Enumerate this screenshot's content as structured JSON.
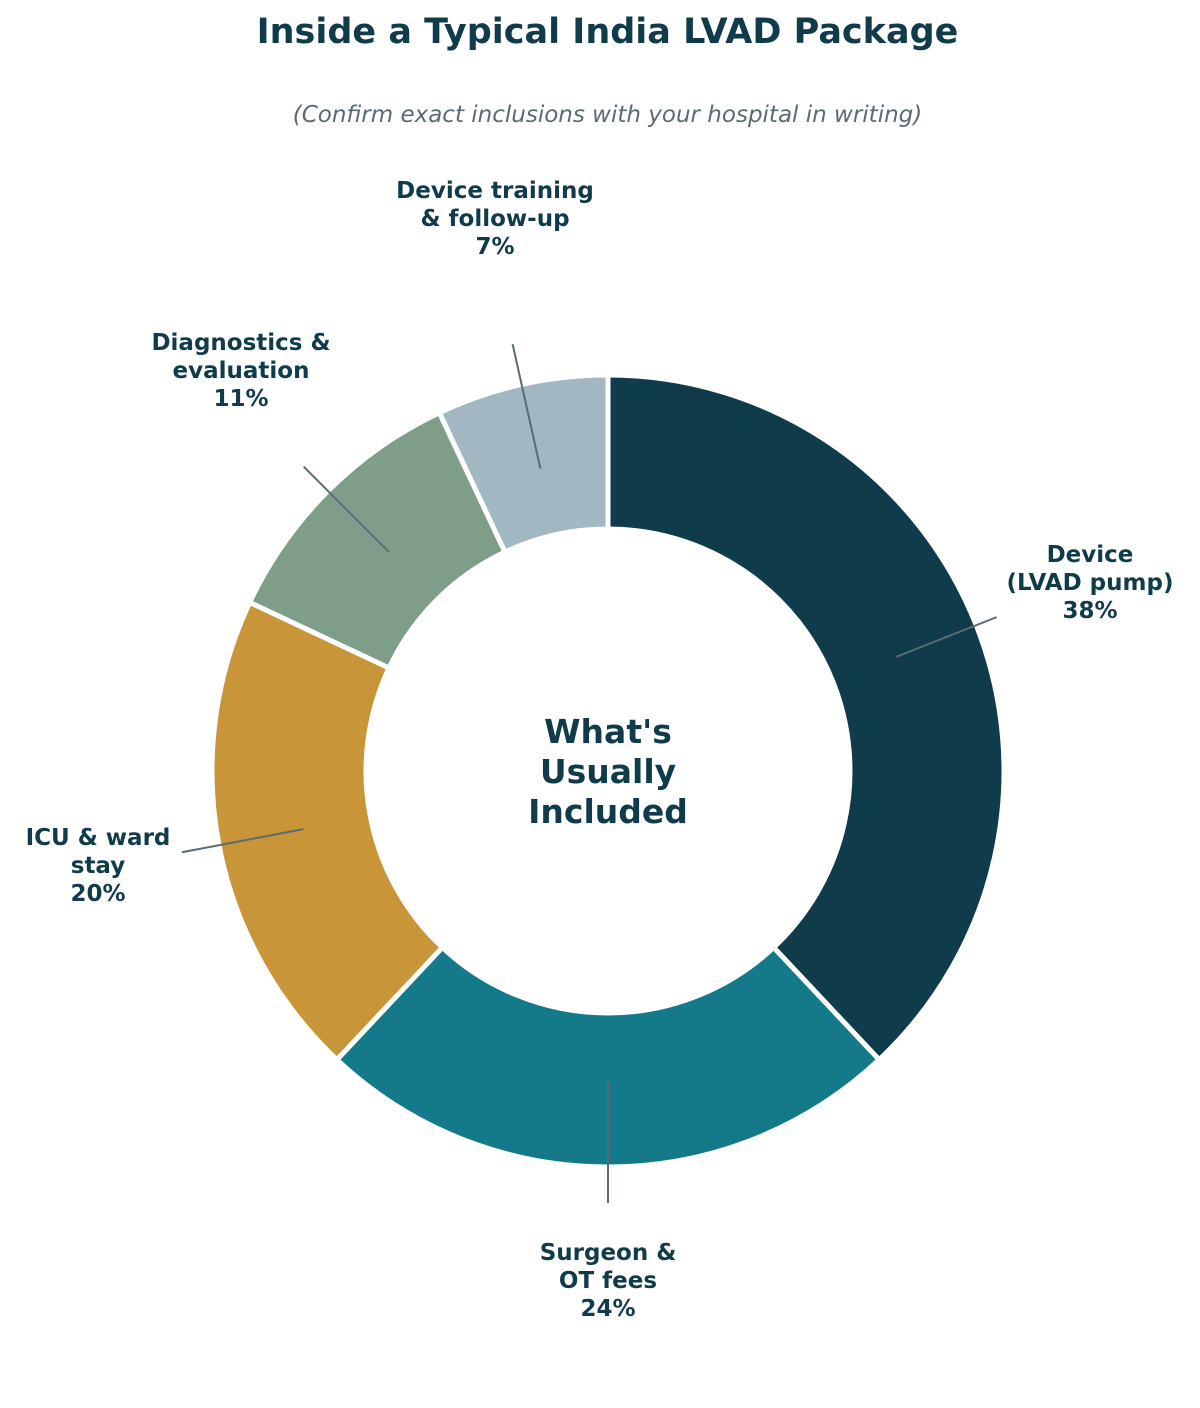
{
  "chart_data": {
    "type": "pie",
    "style": "donut",
    "title": "Inside a Typical India LVAD Package",
    "subtitle": "(Confirm exact inclusions with your hospital in writing)",
    "center_text": [
      "What's",
      "Usually",
      "Included"
    ],
    "unit": "%",
    "slices": [
      {
        "label": [
          "Device",
          "(LVAD pump)"
        ],
        "value": 38,
        "value_label": "38%",
        "color": "#0f3b4a"
      },
      {
        "label": [
          "Surgeon &",
          "OT fees"
        ],
        "value": 24,
        "value_label": "24%",
        "color": "#147a8a"
      },
      {
        "label": [
          "ICU & ward",
          "stay"
        ],
        "value": 20,
        "value_label": "20%",
        "color": "#c89638"
      },
      {
        "label": [
          "Diagnostics &",
          "evaluation"
        ],
        "value": 11,
        "value_label": "11%",
        "color": "#7f9e8a"
      },
      {
        "label": [
          "Device training",
          "& follow-up"
        ],
        "value": 7,
        "value_label": "7%",
        "color": "#a1b8c2"
      }
    ],
    "start": "top",
    "direction": "clockwise",
    "legend": "none"
  },
  "colors": {
    "title": "#0f3b4a",
    "subtitle": "#5b6b72",
    "label_text": "#0f3b4a",
    "leader_line": "#5b6b72",
    "slice_border": "#ffffff"
  }
}
